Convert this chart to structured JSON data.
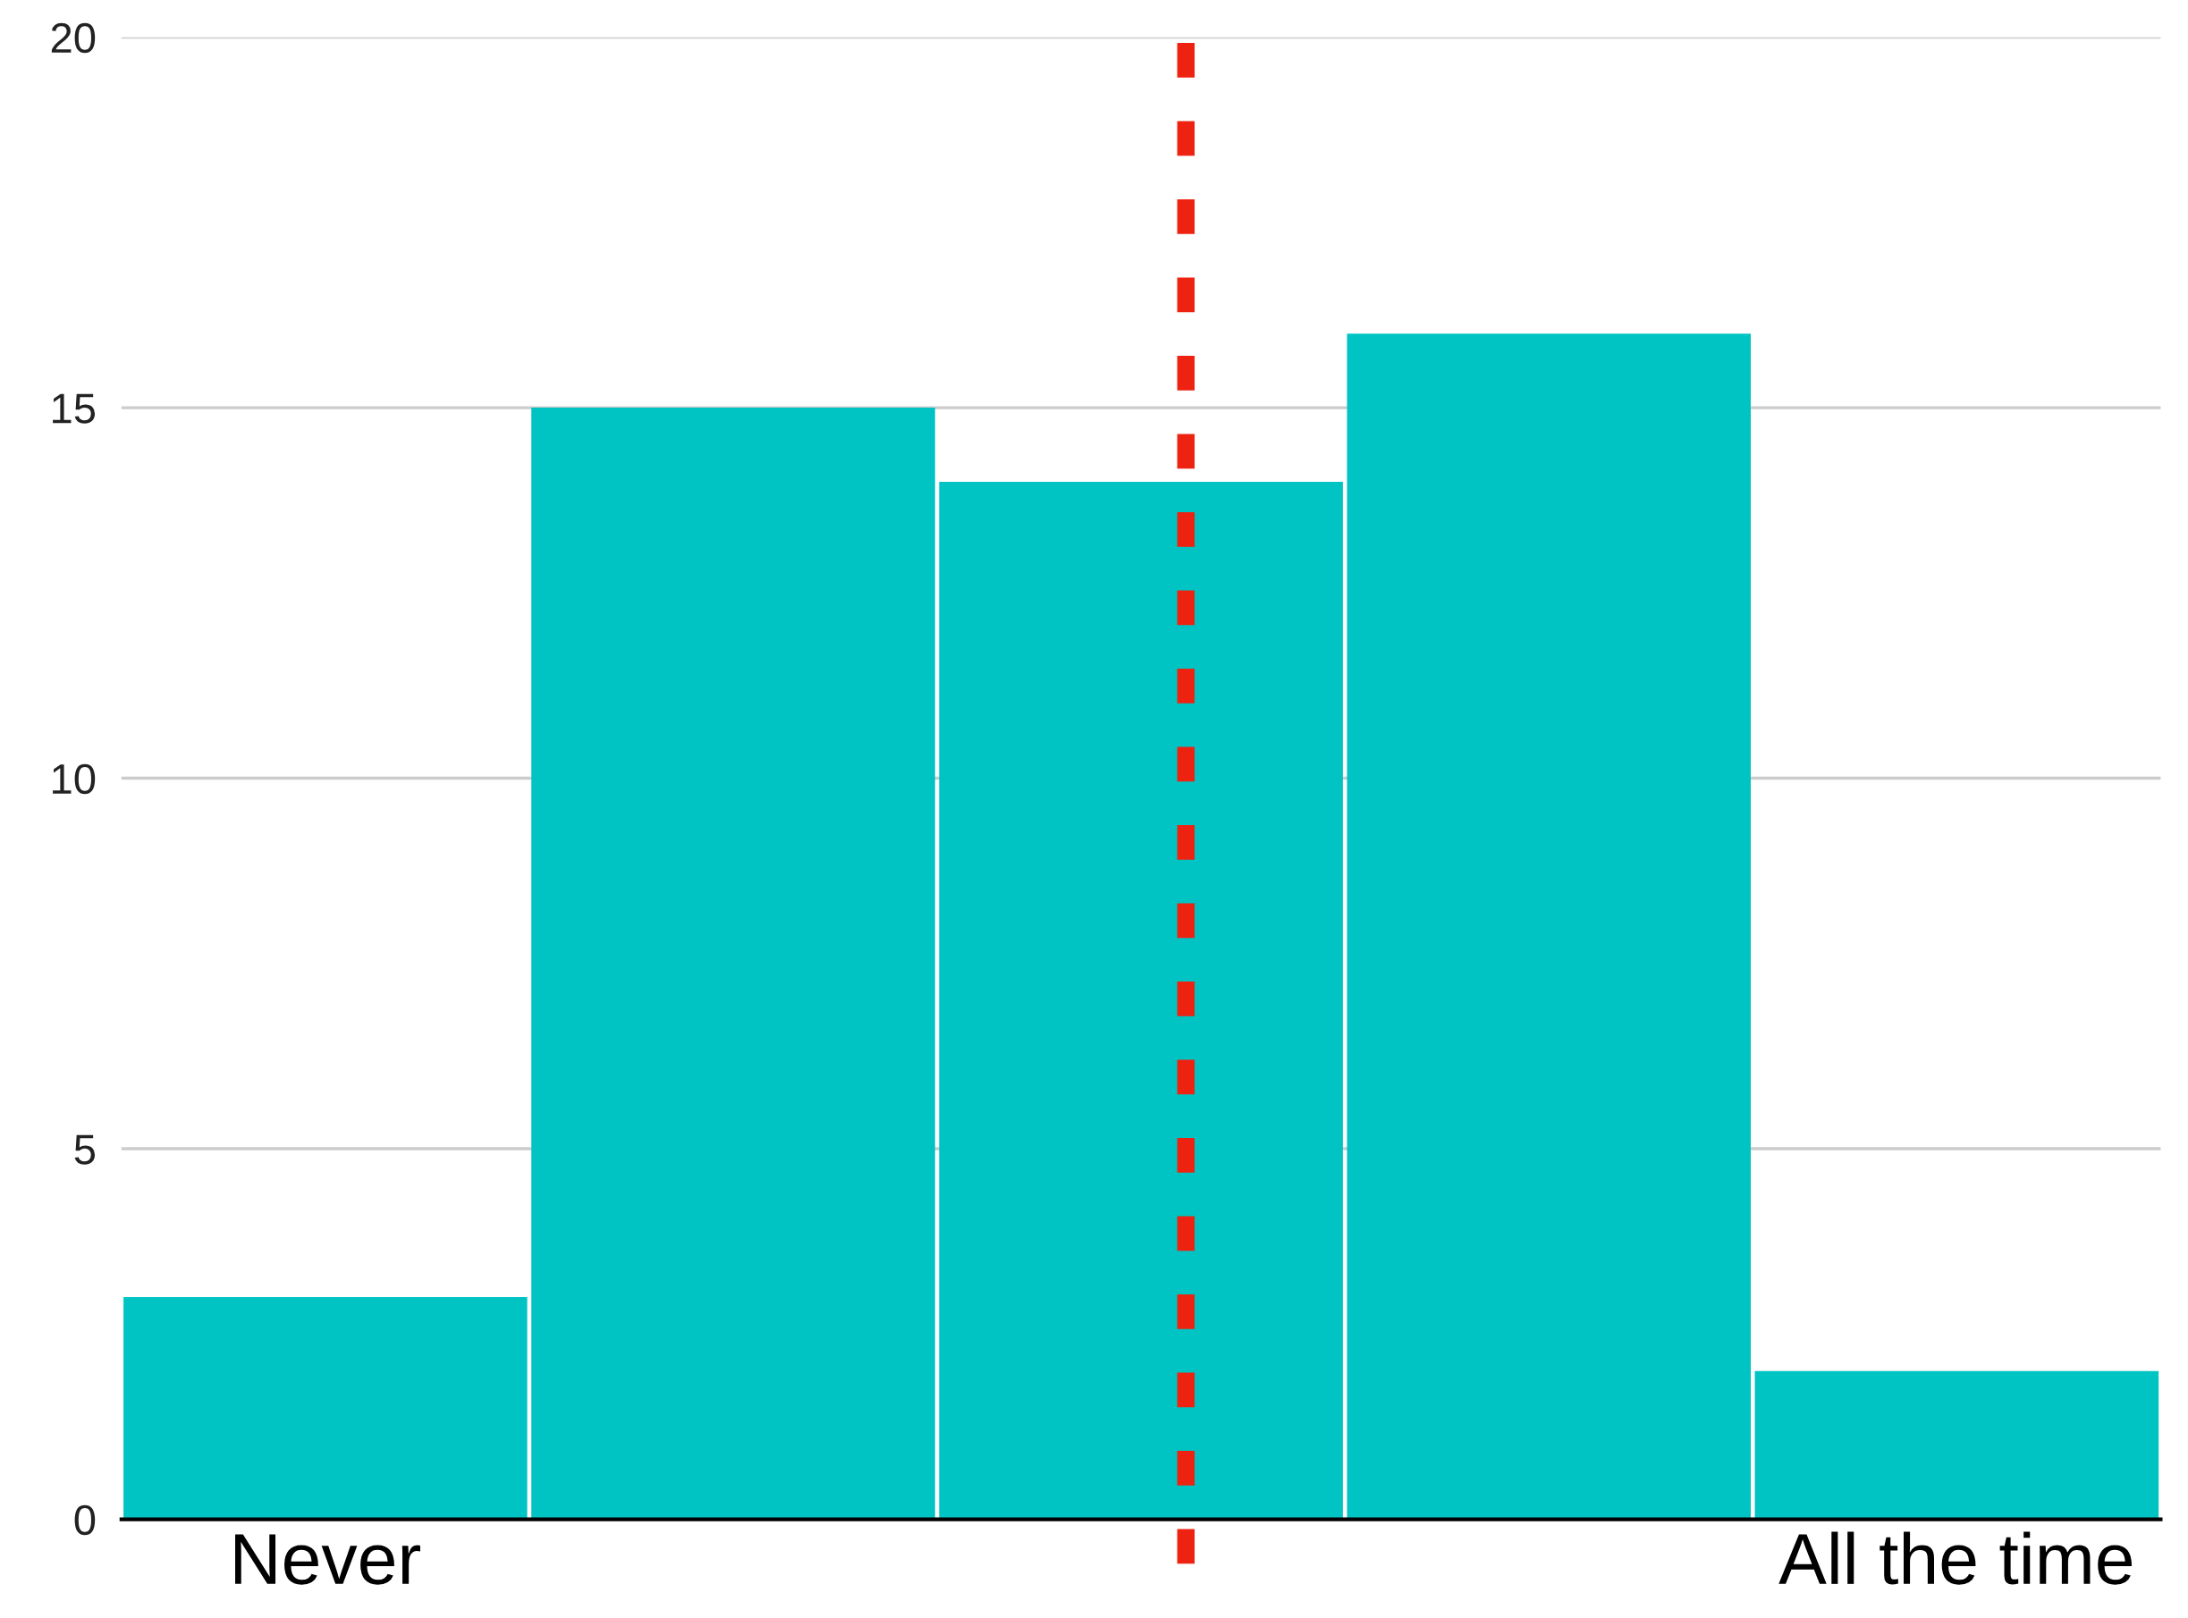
{
  "chart_data": {
    "type": "bar",
    "categories": [
      "Never",
      null,
      null,
      null,
      "All the time"
    ],
    "values": [
      3,
      15,
      14,
      16,
      2
    ],
    "color": "#00c4c4",
    "ylim": [
      0,
      20
    ],
    "yticks": [
      0,
      5,
      10,
      15,
      20
    ],
    "grid": "y"
  }
}
